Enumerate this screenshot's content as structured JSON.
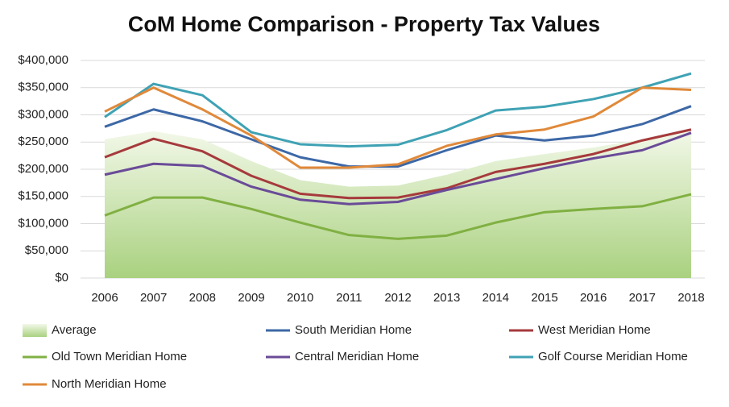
{
  "chart_data": {
    "type": "line",
    "title": "CoM Home Comparison - Property Tax Values",
    "categories": [
      "2006",
      "2007",
      "2008",
      "2009",
      "2010",
      "2011",
      "2012",
      "2013",
      "2014",
      "2015",
      "2016",
      "2017",
      "2018"
    ],
    "ylim": [
      0,
      400000
    ],
    "yticks": [
      {
        "value": 0,
        "label": "$0"
      },
      {
        "value": 50000,
        "label": "$50,000"
      },
      {
        "value": 100000,
        "label": "$100,000"
      },
      {
        "value": 150000,
        "label": "$150,000"
      },
      {
        "value": 200000,
        "label": "$200,000"
      },
      {
        "value": 250000,
        "label": "$250,000"
      },
      {
        "value": 300000,
        "label": "$300,000"
      },
      {
        "value": 350000,
        "label": "$350,000"
      },
      {
        "value": 400000,
        "label": "$400,000"
      }
    ],
    "grid": true,
    "series": [
      {
        "name": "Average",
        "kind": "area",
        "color": "#a9d17f",
        "values": [
          255000,
          270000,
          255000,
          215000,
          180000,
          168000,
          170000,
          190000,
          215000,
          228000,
          240000,
          255000,
          270000
        ]
      },
      {
        "name": "South Meridian Home",
        "color": "#3d68a6",
        "values": [
          278000,
          310000,
          288000,
          255000,
          222000,
          205000,
          205000,
          235000,
          262000,
          253000,
          262000,
          283000,
          316000
        ]
      },
      {
        "name": "West Meridian Home",
        "color": "#a63a3c",
        "values": [
          222000,
          256000,
          233000,
          188000,
          155000,
          147000,
          148000,
          165000,
          195000,
          210000,
          228000,
          253000,
          273000
        ]
      },
      {
        "name": "Old Town Meridian Home",
        "color": "#80b042",
        "values": [
          115000,
          148000,
          148000,
          127000,
          102000,
          79000,
          72000,
          78000,
          102000,
          121000,
          127000,
          132000,
          154000
        ]
      },
      {
        "name": "Central Meridian Home",
        "color": "#6a4b98",
        "values": [
          190000,
          210000,
          206000,
          168000,
          144000,
          136000,
          140000,
          162000,
          182000,
          202000,
          220000,
          235000,
          267000
        ]
      },
      {
        "name": "Golf Course Meridian Home",
        "color": "#3fa2b4",
        "values": [
          296000,
          357000,
          336000,
          268000,
          246000,
          242000,
          245000,
          272000,
          308000,
          315000,
          329000,
          350000,
          376000
        ]
      },
      {
        "name": "North Meridian Home",
        "color": "#e0893a",
        "values": [
          306000,
          350000,
          310000,
          262000,
          203000,
          203000,
          209000,
          243000,
          264000,
          273000,
          297000,
          350000,
          346000
        ]
      }
    ]
  }
}
